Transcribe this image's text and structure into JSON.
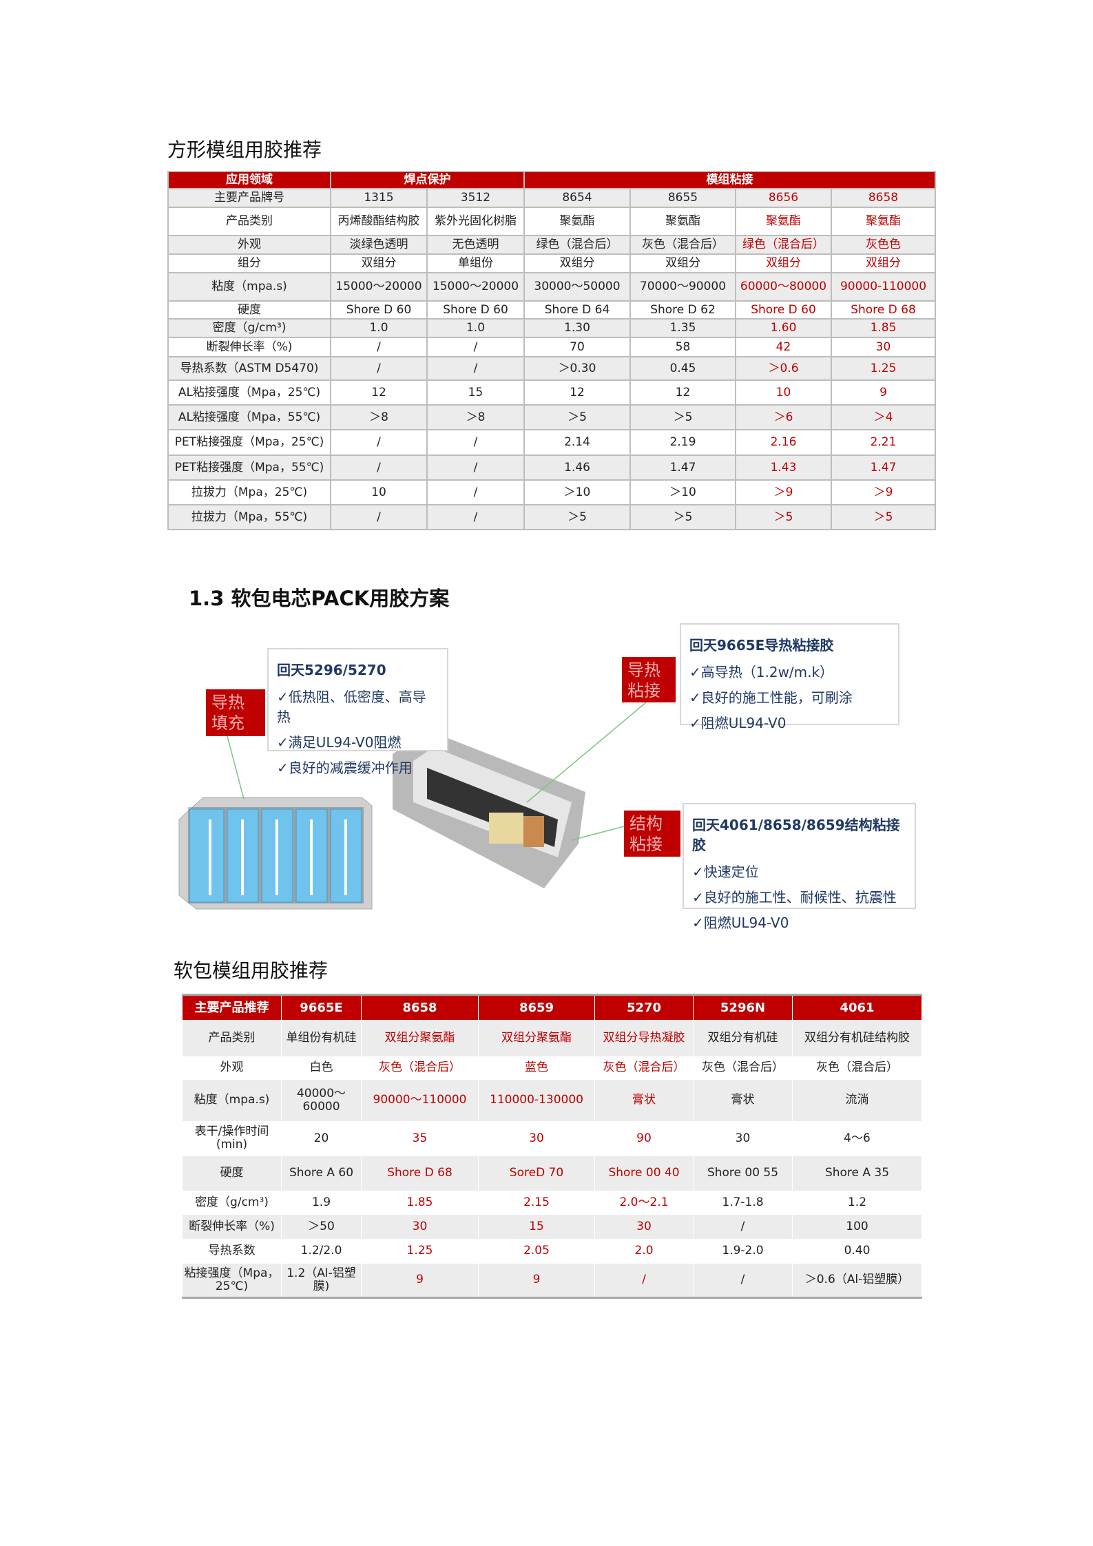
{
  "section1": {
    "title": "方形模组用胶推荐",
    "header": [
      {
        "label": "应用领域",
        "span": 1
      },
      {
        "label": "焊点保护",
        "span": 2
      },
      {
        "label": "模组粘接",
        "span": 4
      }
    ],
    "highlight_color": "#c00000",
    "highlight_columns": [
      5,
      6
    ],
    "rows": [
      [
        "主要产品牌号",
        "1315",
        "3512",
        "8654",
        "8655",
        "8656",
        "8658"
      ],
      [
        "产品类别",
        "丙烯酸酯结构胶",
        "紫外光固化树脂",
        "聚氨酯",
        "聚氨酯",
        "聚氨酯",
        "聚氨酯"
      ],
      [
        "外观",
        "淡绿色透明",
        "无色透明",
        "绿色（混合后）",
        "灰色（混合后）",
        "绿色（混合后）",
        "灰色色"
      ],
      [
        "组分",
        "双组分",
        "单组份",
        "双组分",
        "双组分",
        "双组分",
        "双组分"
      ],
      [
        "粘度（mpa.s)",
        "15000～20000",
        "15000～20000",
        "30000～50000",
        "70000～90000",
        "60000～80000",
        "90000-110000"
      ],
      [
        "硬度",
        "Shore D 60",
        "Shore D 60",
        "Shore D 64",
        "Shore D 62",
        "Shore D 60",
        "Shore D 68"
      ],
      [
        "密度（g/cm³)",
        "1.0",
        "1.0",
        "1.30",
        "1.35",
        "1.60",
        "1.85"
      ],
      [
        "断裂伸长率（%)",
        "/",
        "/",
        "70",
        "58",
        "42",
        "30"
      ],
      [
        "导热系数（ASTM D5470)",
        "/",
        "/",
        "＞0.30",
        "0.45",
        "＞0.6",
        "1.25"
      ],
      [
        "AL粘接强度（Mpa，25℃)",
        "12",
        "15",
        "12",
        "12",
        "10",
        "9"
      ],
      [
        "AL粘接强度（Mpa，55℃)",
        "＞8",
        "＞8",
        "＞5",
        "＞5",
        "＞6",
        "＞4"
      ],
      [
        "PET粘接强度（Mpa，25℃)",
        "/",
        "/",
        "2.14",
        "2.19",
        "2.16",
        "2.21"
      ],
      [
        "PET粘接强度（Mpa，55℃)",
        "/",
        "/",
        "1.46",
        "1.47",
        "1.43",
        "1.47"
      ],
      [
        "拉拔力（Mpa，25℃)",
        "10",
        "/",
        "＞10",
        "＞10",
        "＞9",
        "＞9"
      ],
      [
        "拉拔力（Mpa，55℃)",
        "/",
        "/",
        "＞5",
        "＞5",
        "＞5",
        "＞5"
      ]
    ]
  },
  "section2": {
    "title": "1.3 软包电芯PACK用胶方案",
    "callouts": [
      {
        "tag": "导热\n填充",
        "title": "回天5296/5270",
        "items": [
          "✓低热阻、低密度、高导热",
          "✓满足UL94-V0阻燃",
          "✓良好的减震缓冲作用"
        ]
      },
      {
        "tag": "导热\n粘接",
        "title": "回天9665E导热粘接胶",
        "items": [
          "✓高导热（1.2w/m.k）",
          "✓良好的施工性能，可刷涂",
          "✓阻燃UL94-V0"
        ]
      },
      {
        "tag": "结构\n粘接",
        "title": "回天4061/8658/8659结构粘接胶",
        "items": [
          "✓快速定位",
          "✓良好的施工性、耐候性、抗震性",
          "✓阻燃UL94-V0"
        ]
      }
    ]
  },
  "section3": {
    "title": "软包模组用胶推荐",
    "header": [
      "主要产品推荐",
      "9665E",
      "8658",
      "8659",
      "5270",
      "5296N",
      "4061"
    ],
    "highlight_columns": [
      2,
      3,
      4
    ],
    "rows": [
      [
        "产品类别",
        "单组份有机硅",
        "双组分聚氨酯",
        "双组分聚氨酯",
        "双组分导热凝胶",
        "双组分有机硅",
        "双组分有机硅结构胶"
      ],
      [
        "外观",
        "白色",
        "灰色（混合后）",
        "蓝色",
        "灰色（混合后）",
        "灰色（混合后）",
        "灰色（混合后）"
      ],
      [
        "粘度（mpa.s)",
        "40000～60000",
        "90000～110000",
        "110000-130000",
        "膏状",
        "膏状",
        "流淌"
      ],
      [
        "表干/操作时间(min)",
        "20",
        "35",
        "30",
        "90",
        "30",
        "4～6"
      ],
      [
        "硬度",
        "Shore A 60",
        "Shore D 68",
        "SoreD 70",
        "Shore 00 40",
        "Shore 00 55",
        "Shore A 35"
      ],
      [
        "密度（g/cm³)",
        "1.9",
        "1.85",
        "2.15",
        "2.0～2.1",
        "1.7-1.8",
        "1.2"
      ],
      [
        "断裂伸长率（%)",
        "＞50",
        "30",
        "15",
        "30",
        "/",
        "100"
      ],
      [
        "导热系数",
        "1.2/2.0",
        "1.25",
        "2.05",
        "2.0",
        "1.9-2.0",
        "0.40"
      ],
      [
        "粘接强度（Mpa，25℃)",
        "1.2（Al-铝塑膜)",
        "9",
        "9",
        "/",
        "/",
        "＞0.6（Al-铝塑膜）"
      ]
    ]
  }
}
